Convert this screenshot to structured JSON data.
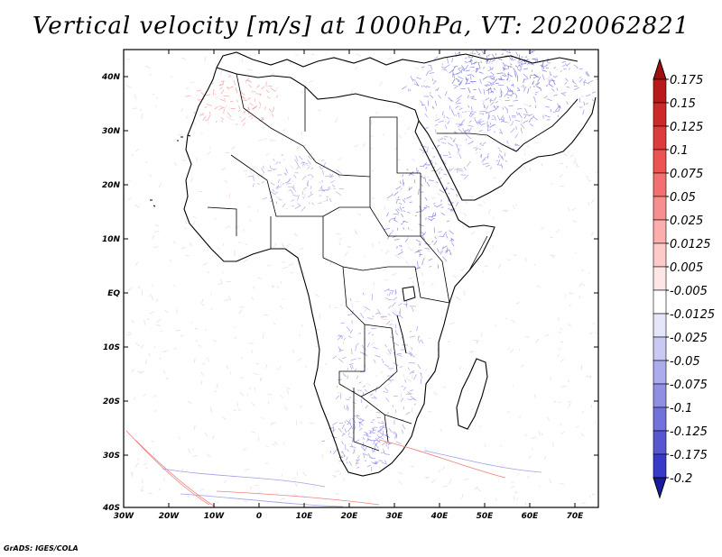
{
  "title": "Vertical velocity [m/s] at 1000hPa, VT: 2020062821",
  "credit": "GrADS: IGES/COLA",
  "axes": {
    "lat_labels": [
      "40N",
      "30N",
      "20N",
      "10N",
      "EQ",
      "10S",
      "20S",
      "30S",
      "40S"
    ],
    "lon_labels": [
      "30W",
      "20W",
      "10W",
      "0",
      "10E",
      "20E",
      "30E",
      "40E",
      "50E",
      "60E",
      "70E"
    ]
  },
  "colorbar": {
    "levels": [
      {
        "label": "0.175",
        "color": "#b81a1a"
      },
      {
        "label": "0.15",
        "color": "#cc2a2a"
      },
      {
        "label": "0.125",
        "color": "#de3c3c"
      },
      {
        "label": "0.1",
        "color": "#ec5454"
      },
      {
        "label": "0.075",
        "color": "#f27070"
      },
      {
        "label": "0.05",
        "color": "#f78f8f"
      },
      {
        "label": "0.025",
        "color": "#fbaeae"
      },
      {
        "label": "0.0125",
        "color": "#fdcaca"
      },
      {
        "label": "0.005",
        "color": "#fee6e6"
      },
      {
        "label": "-0.005",
        "color": "#ffffff"
      },
      {
        "label": "-0.0125",
        "color": "#e6e6fb"
      },
      {
        "label": "-0.025",
        "color": "#c9c9f3"
      },
      {
        "label": "-0.05",
        "color": "#acacec"
      },
      {
        "label": "-0.075",
        "color": "#8f8fe4"
      },
      {
        "label": "-0.1",
        "color": "#7272dc"
      },
      {
        "label": "-0.125",
        "color": "#5757d2"
      },
      {
        "label": "-0.175",
        "color": "#3a3ac8"
      },
      {
        "label": "-0.2",
        "color": "#2222b4"
      }
    ],
    "top_arrow_color": "#a01010",
    "bottom_arrow_color": "#1a1aa0"
  }
}
